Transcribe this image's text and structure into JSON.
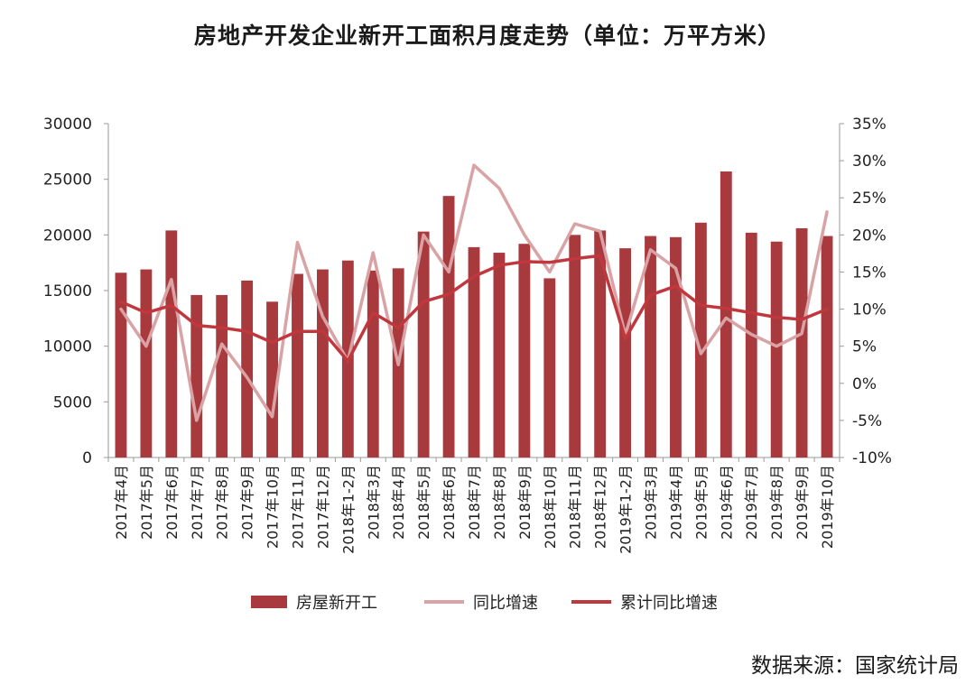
{
  "title": "房地产开发企业新开工面积月度走势（单位：万平方米）",
  "source": "数据来源：国家统计局",
  "colors": {
    "bar": "#a8393d",
    "yoy_line": "#d9a3a5",
    "cum_line": "#c0383d",
    "axis": "#9a9a9a"
  },
  "chart_data": {
    "type": "bar",
    "title": "房地产开发企业新开工面积月度走势（单位：万平方米）",
    "categories": [
      "2017年4月",
      "2017年5月",
      "2017年6月",
      "2017年7月",
      "2017年8月",
      "2017年9月",
      "2017年10月",
      "2017年11月",
      "2017年12月",
      "2018年1-2月",
      "2018年3月",
      "2018年4月",
      "2018年5月",
      "2018年6月",
      "2018年7月",
      "2018年8月",
      "2018年9月",
      "2018年10月",
      "2018年11月",
      "2018年12月",
      "2019年1-2月",
      "2019年3月",
      "2019年4月",
      "2019年5月",
      "2019年6月",
      "2019年7月",
      "2019年8月",
      "2019年9月",
      "2019年10月"
    ],
    "left_axis": {
      "ylim": [
        0,
        30000
      ],
      "ticks": [
        "0",
        "5000",
        "10000",
        "15000",
        "20000",
        "25000",
        "30000"
      ]
    },
    "right_axis": {
      "ylim": [
        -10,
        35
      ],
      "ticks": [
        "-10%",
        "-5%",
        "0%",
        "5%",
        "10%",
        "15%",
        "20%",
        "25%",
        "30%",
        "35%"
      ]
    },
    "legend": {
      "position": "bottom"
    },
    "series": [
      {
        "name": "房屋新开工",
        "type": "bar",
        "axis": "left",
        "values": [
          16600,
          16900,
          20400,
          14600,
          14600,
          15900,
          14000,
          16500,
          16900,
          17700,
          16800,
          17000,
          20300,
          23500,
          18900,
          18400,
          19200,
          16100,
          20000,
          20400,
          18800,
          19900,
          19800,
          21100,
          25700,
          20200,
          19400,
          20600,
          19900
        ]
      },
      {
        "name": "同比增速",
        "type": "line",
        "axis": "right",
        "values": [
          10,
          5,
          14,
          -5,
          5.3,
          0.8,
          -4.5,
          19,
          9,
          3,
          17.6,
          2.5,
          20,
          15,
          29.4,
          26.3,
          20,
          15,
          21.5,
          20.5,
          6.5,
          18,
          15.5,
          4,
          8.8,
          6.6,
          5,
          6.7,
          23.1
        ]
      },
      {
        "name": "累计同比增速",
        "type": "line",
        "axis": "right",
        "values": [
          11,
          9.5,
          10.5,
          7.8,
          7.5,
          7,
          5.5,
          7,
          7,
          3,
          9.5,
          7.5,
          11,
          12,
          14.4,
          15.9,
          16.4,
          16.3,
          16.8,
          17.2,
          6,
          11.9,
          13.1,
          10.5,
          10.1,
          9.5,
          8.9,
          8.6,
          10
        ]
      }
    ]
  }
}
